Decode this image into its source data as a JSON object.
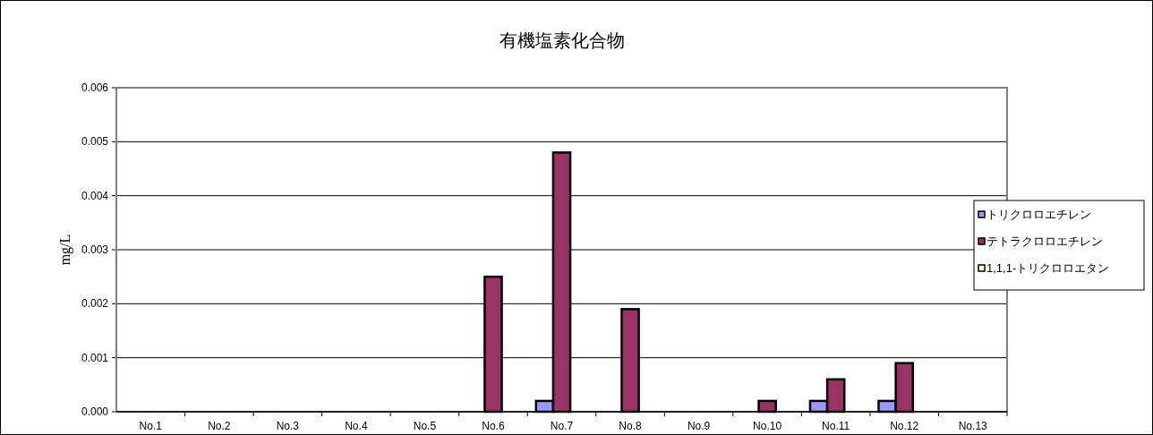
{
  "chart_data": {
    "type": "bar",
    "title": "有機塩素化合物",
    "ylabel": "mg/L",
    "categories": [
      "No.1",
      "No.2",
      "No.3",
      "No.4",
      "No.5",
      "No.6",
      "No.7",
      "No.8",
      "No.9",
      "No.10",
      "No.11",
      "No.12",
      "No.13"
    ],
    "series": [
      {
        "name": "トリクロロエチレン",
        "color": "#9999ff",
        "values": [
          0,
          0,
          0,
          0,
          0,
          0,
          0.0002,
          0,
          0,
          0,
          0.0002,
          0.0002,
          0
        ]
      },
      {
        "name": "テトラクロロエチレン",
        "color": "#993366",
        "values": [
          0,
          0,
          0,
          0,
          0,
          0.0025,
          0.0048,
          0.0019,
          0,
          0.0002,
          0.0006,
          0.0009,
          0
        ]
      },
      {
        "name": "1,1,1-トリクロロエタン",
        "color": "#ffffcc",
        "values": [
          0,
          0,
          0,
          0,
          0,
          0,
          0,
          0,
          0,
          0,
          0,
          0,
          0
        ]
      }
    ],
    "ylim": [
      0,
      0.006
    ],
    "yticks": [
      {
        "value": 0,
        "label": "0.000"
      },
      {
        "value": 0.001,
        "label": "0.001"
      },
      {
        "value": 0.002,
        "label": "0.002"
      },
      {
        "value": 0.003,
        "label": "0.003"
      },
      {
        "value": 0.004,
        "label": "0.004"
      },
      {
        "value": 0.005,
        "label": "0.005"
      },
      {
        "value": 0.006,
        "label": "0.006"
      }
    ],
    "grid": "y",
    "legend": "right"
  }
}
